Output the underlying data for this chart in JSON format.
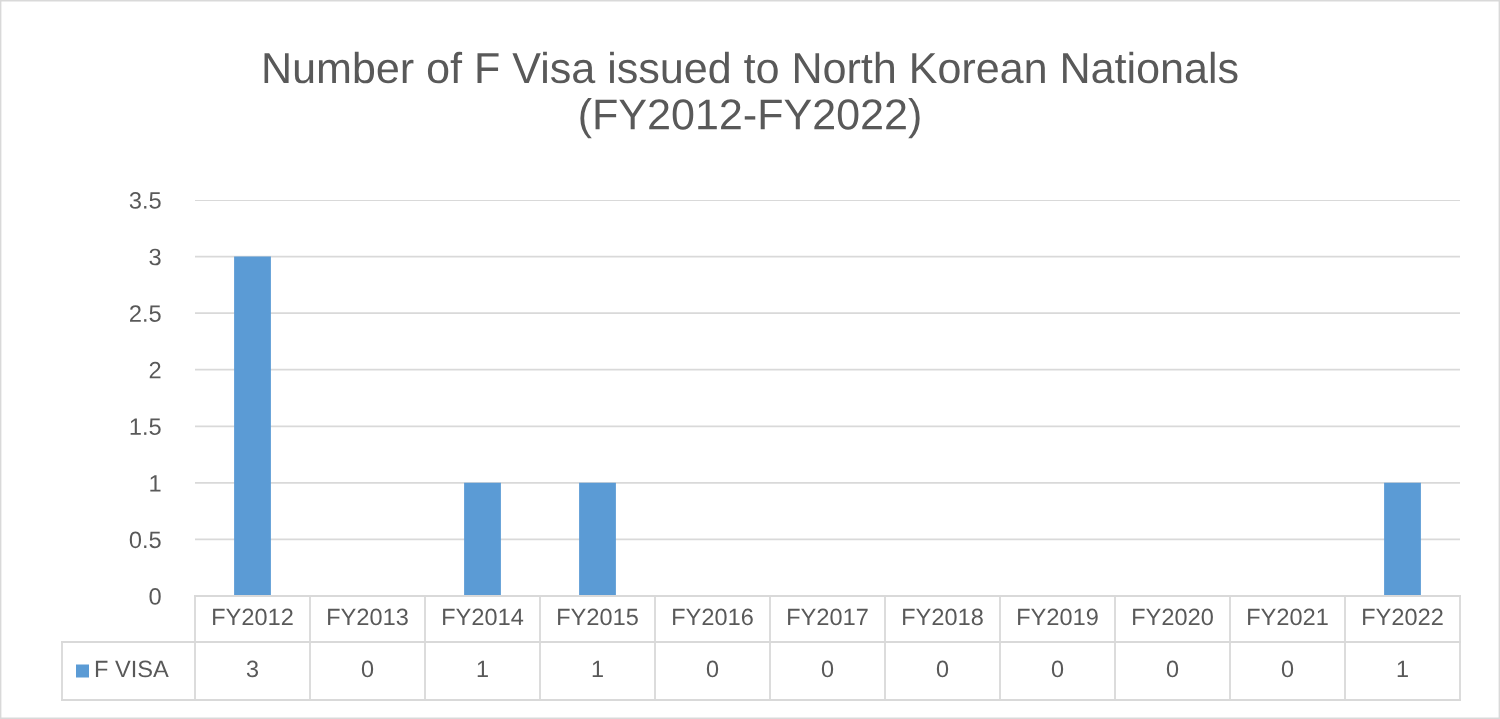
{
  "chart_data": {
    "type": "bar",
    "title": "Number of F Visa issued to North Korean Nationals\n(FY2012-FY2022)",
    "categories": [
      "FY2012",
      "FY2013",
      "FY2014",
      "FY2015",
      "FY2016",
      "FY2017",
      "FY2018",
      "FY2019",
      "FY2020",
      "FY2021",
      "FY2022"
    ],
    "series": [
      {
        "name": "F VISA",
        "color": "#5b9bd5",
        "values": [
          3,
          0,
          1,
          1,
          0,
          0,
          0,
          0,
          0,
          0,
          1
        ]
      }
    ],
    "ylim": [
      0,
      3.5
    ],
    "yticks": [
      0,
      0.5,
      1,
      1.5,
      2,
      2.5,
      3,
      3.5
    ],
    "grid": "y",
    "legend": "bottom left",
    "data_labels": true
  }
}
